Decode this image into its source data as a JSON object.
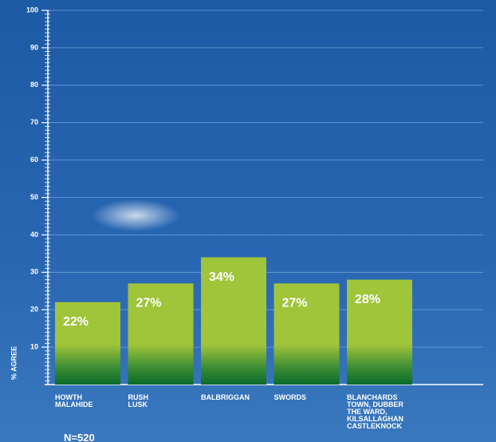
{
  "chart_data": {
    "type": "bar",
    "y_label": "% AGREE",
    "note": "N=520",
    "categories": [
      "HOWTH\nMALAHIDE",
      "RUSH\nLUSK",
      "BALBRIGGAN",
      "SWORDS",
      "BLANCHARDS\nTOWN, DUBBER\nTHE WARD,\nKILSALLAGHAN\nCASTLEKNOCK"
    ],
    "values": [
      22,
      27,
      34,
      27,
      28
    ],
    "value_labels": [
      "22%",
      "27%",
      "34%",
      "27%",
      "28%"
    ],
    "color": "#a0c43a",
    "ylim": [
      0,
      100
    ],
    "yticks": [
      10,
      20,
      30,
      40,
      50,
      60,
      70,
      80,
      90,
      100
    ],
    "grid": true
  }
}
